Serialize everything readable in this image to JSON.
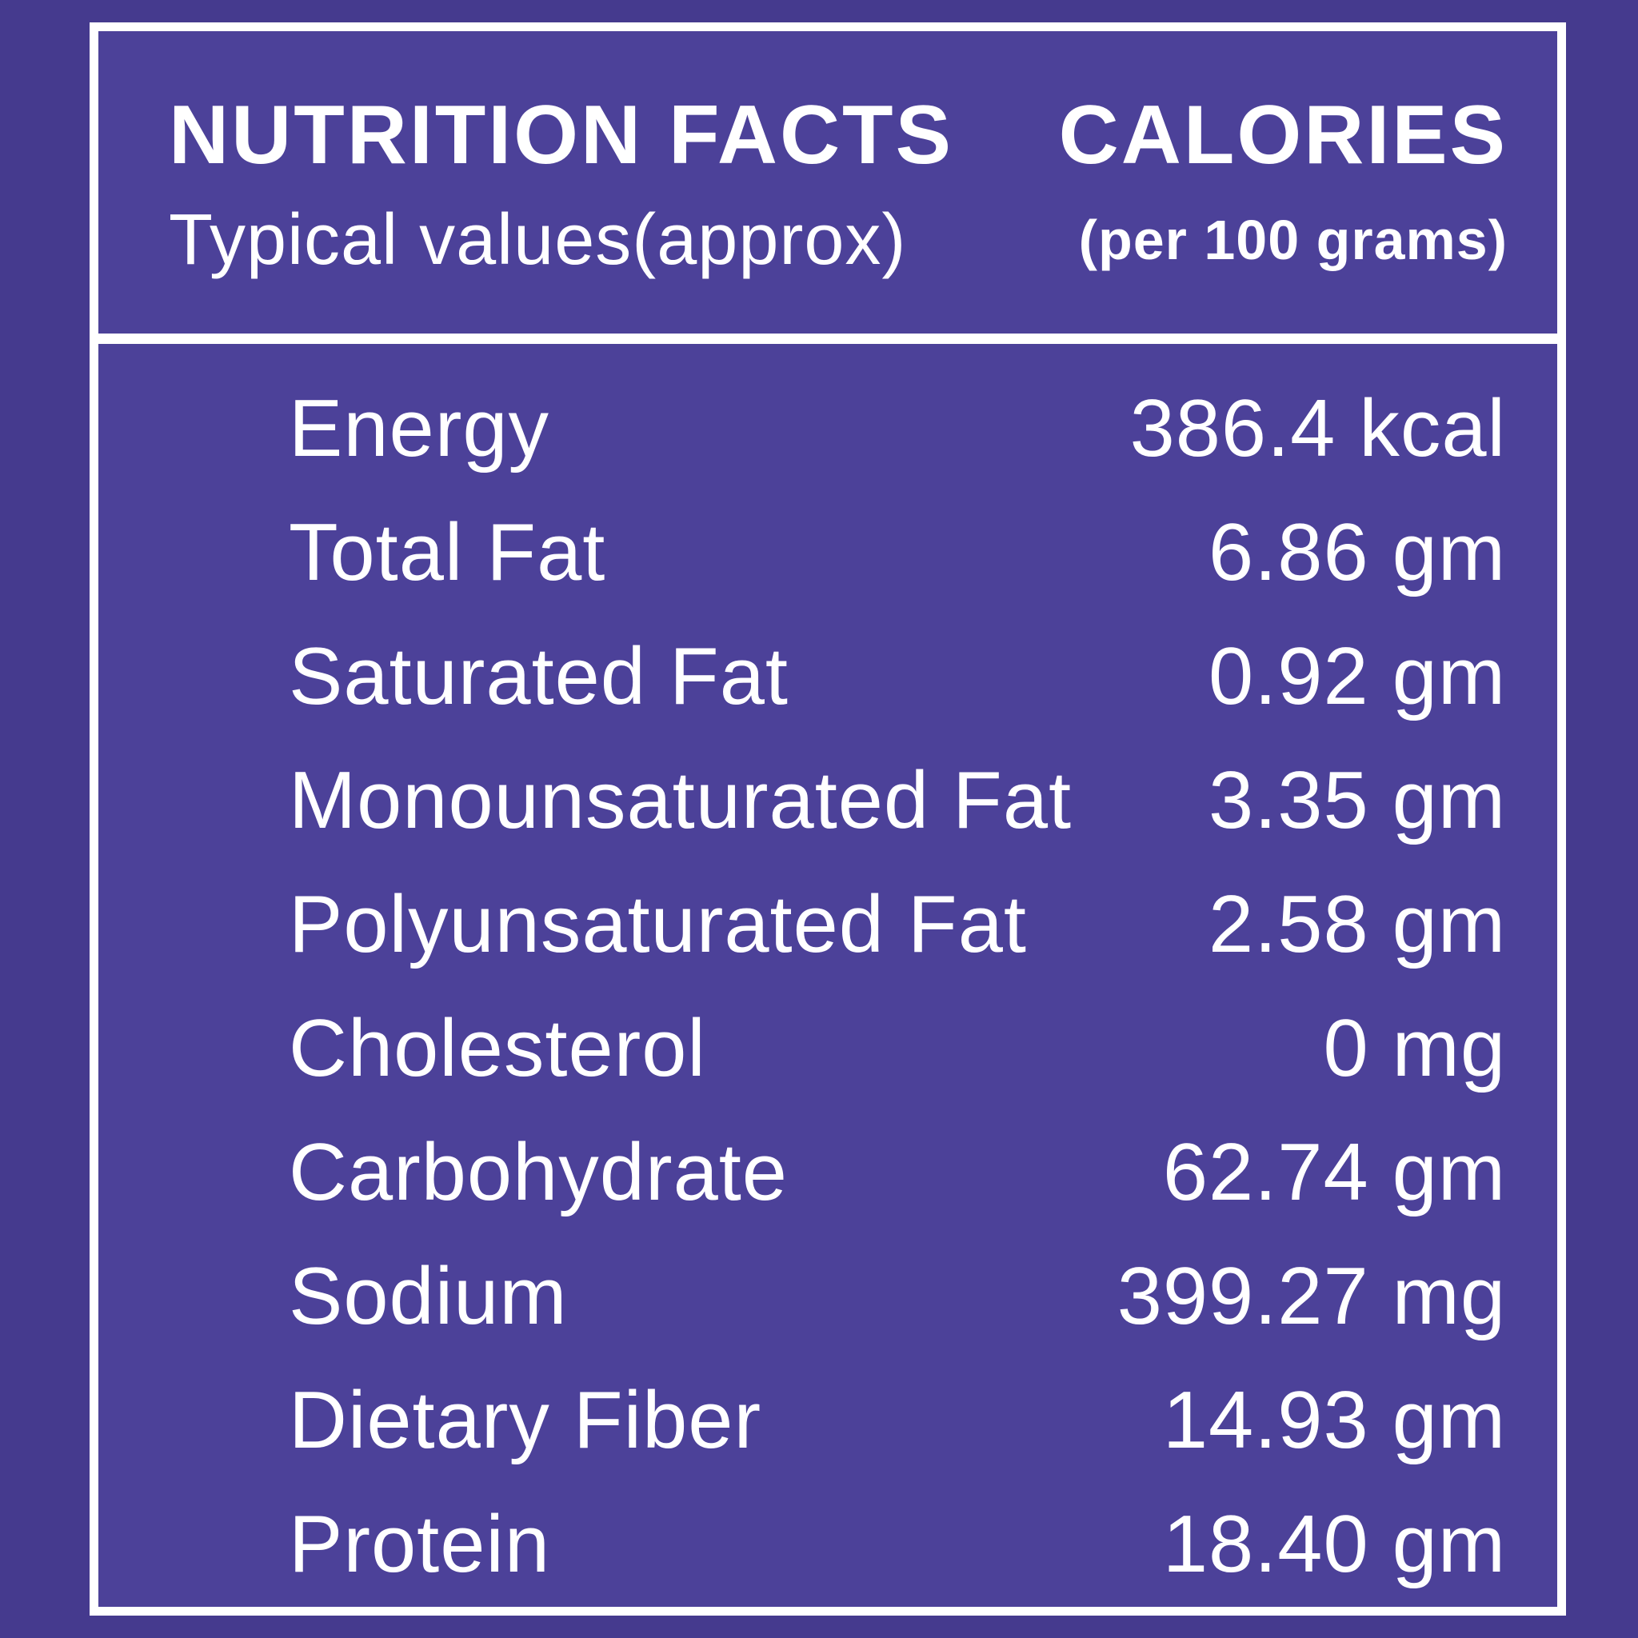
{
  "label": {
    "title": "NUTRITION FACTS",
    "subtitle": "Typical values(approx)",
    "calories_title": "CALORIES",
    "calories_subtitle": "(per 100 grams)",
    "rows": [
      {
        "name": "Energy",
        "value": "386.4 kcal"
      },
      {
        "name": "Total Fat",
        "value": "6.86 gm"
      },
      {
        "name": "Saturated Fat",
        "value": "0.92 gm"
      },
      {
        "name": "Monounsaturated Fat",
        "value": "3.35 gm"
      },
      {
        "name": "Polyunsaturated Fat",
        "value": "2.58 gm"
      },
      {
        "name": "Cholesterol",
        "value": "0 mg"
      },
      {
        "name": "Carbohydrate",
        "value": "62.74 gm"
      },
      {
        "name": "Sodium",
        "value": "399.27 mg"
      },
      {
        "name": "Dietary Fiber",
        "value": "14.93 gm"
      },
      {
        "name": "Protein",
        "value": "18.40 gm"
      }
    ],
    "colors": {
      "background_outer": "#453a8e",
      "background_inner": "#4c4199",
      "border": "#ffffff",
      "text": "#ffffff"
    }
  }
}
